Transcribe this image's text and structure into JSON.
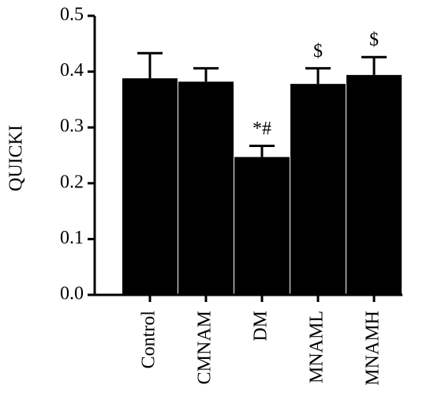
{
  "chart_data": {
    "type": "bar",
    "y_label": "QUICKI",
    "categories": [
      "Control",
      "CMNAM",
      "DM",
      "MNAML",
      "MNAMH"
    ],
    "values": [
      0.388,
      0.382,
      0.247,
      0.378,
      0.394
    ],
    "errors": [
      0.045,
      0.024,
      0.02,
      0.028,
      0.032
    ],
    "annotations": [
      null,
      null,
      "*#",
      "$",
      "$"
    ],
    "color": "#000000",
    "ylim": [
      0,
      0.5
    ],
    "yticks": [
      {
        "value": 0,
        "label": "0.0"
      },
      0.1,
      0.2,
      0.3,
      0.4,
      0.5
    ]
  }
}
